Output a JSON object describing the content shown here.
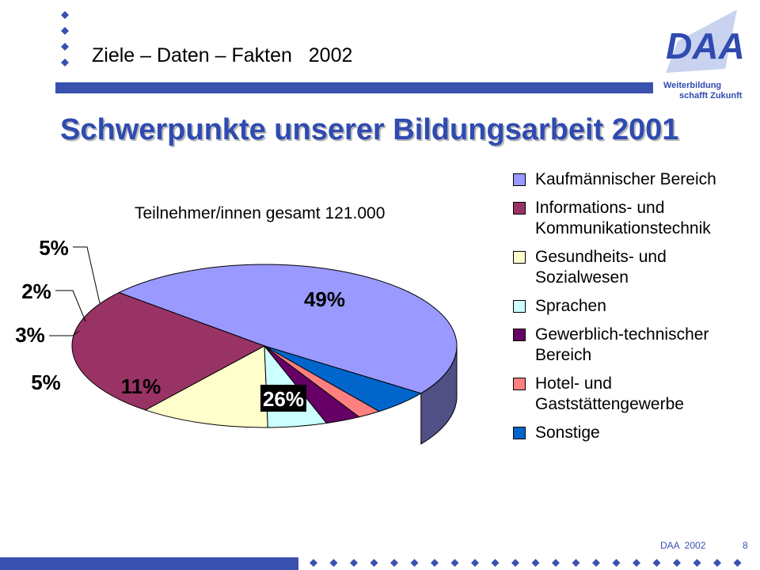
{
  "header": {
    "text": "Ziele – Daten – Fakten   2002"
  },
  "logo": {
    "name": "DAA",
    "tagline_line1": "Weiterbildung",
    "tagline_line2": "schafft Zukunft"
  },
  "slide": {
    "title": "Schwerpunkte unserer Bildungsarbeit 2001"
  },
  "chart_data": {
    "type": "pie",
    "subtitle": "Teilnehmer/innen gesamt 121.000",
    "values": [
      49,
      26,
      11,
      5,
      3,
      2,
      5
    ],
    "labels": [
      "49%",
      "26%",
      "11%",
      "5%",
      "3%",
      "2%",
      "5%"
    ],
    "categories": [
      "Kaufmännischer Bereich",
      "Informations- und\nKommunikationstechnik",
      "Gesundheits- und\nSozialwesen",
      "Sprachen",
      "Gewerblich-technischer\nBereich",
      "Hotel- und\nGaststättengewerbe",
      "Sonstige"
    ],
    "colors": [
      "#9999ff",
      "#993366",
      "#ffffcc",
      "#ccffff",
      "#660066",
      "#ff8080",
      "#0066cc"
    ],
    "legend_position": "right",
    "style": "3d"
  },
  "footer": {
    "text": "DAA  2002",
    "page": "8"
  },
  "icons": {
    "decoration": "diamond-icon"
  }
}
